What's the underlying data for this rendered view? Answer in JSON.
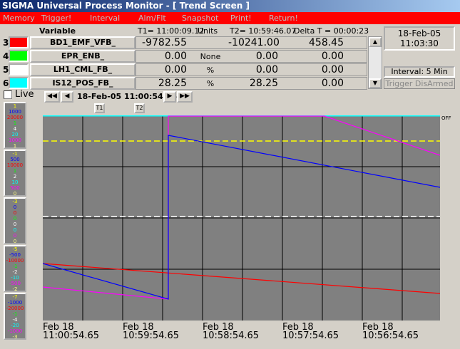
{
  "window": {
    "title": "SIGMA Universal Process Monitor - [ Trend Screen ]"
  },
  "menu": [
    "Memory",
    "Trigger!",
    "Interval",
    "Alm/Flt",
    "Snapshot",
    "Print!",
    "Return!"
  ],
  "table": {
    "header": {
      "variable": "Variable",
      "t1": "T1= 11:00:09.12",
      "units": "Units",
      "t2": "T2= 10:59:46.07",
      "delta": "Delta T = 00:00:23"
    },
    "rows": [
      {
        "index": "3",
        "color": "#ff0000",
        "name": "BD1_EMF_VFB_",
        "t1": "-9782.55",
        "units": "",
        "t2": "-10241.00",
        "delta": "458.45"
      },
      {
        "index": "4",
        "color": "#00ff00",
        "name": "EPR_ENB_",
        "t1": "0.00",
        "units": "None",
        "t2": "0.00",
        "delta": "0.00"
      },
      {
        "index": "5",
        "color": "#ffffff",
        "name": "LH1_CML_FB_",
        "t1": "0.00",
        "units": "%",
        "t2": "0.00",
        "delta": "0.00"
      },
      {
        "index": "6",
        "color": "#00ffff",
        "name": "IS12_POS_FB_",
        "t1": "28.25",
        "units": "%",
        "t2": "28.25",
        "delta": "0.00"
      }
    ]
  },
  "status": {
    "date": "18-Feb-05",
    "time": "11:03:30",
    "interval": "Interval: 5 Min",
    "trigger": "Trigger DisArmed"
  },
  "controls": {
    "live": "Live",
    "nav_time": "18-Feb-05 11:00:54.65",
    "t1_marker": "T1",
    "t2_marker": "T2",
    "off": "OFF"
  },
  "scale_colors": [
    "#ffff00",
    "#0000ff",
    "#ff0000",
    "#00ff00",
    "#ffffff",
    "#00ffff",
    "#ff00ff",
    "#ffff80"
  ],
  "scales": [
    [
      "1",
      "1000",
      "20000",
      "1",
      "4",
      "20",
      "1000",
      "1"
    ],
    [
      "-1",
      "500",
      "10000",
      "1",
      "2",
      "10",
      "500",
      "0"
    ],
    [
      "-3",
      "0",
      "0",
      "0",
      "0",
      "0",
      "0",
      "0"
    ],
    [
      "-5",
      "-500",
      "-10000",
      "-1",
      "-2",
      "-10",
      "-500",
      "-2"
    ],
    [
      "-7",
      "-1000",
      "-20000",
      "-1",
      "-4",
      "-20",
      "-1000",
      "-3"
    ]
  ],
  "x_axis": [
    {
      "date": "Feb 18",
      "time": "11:00:54.65"
    },
    {
      "date": "Feb 18",
      "time": "10:59:54.65"
    },
    {
      "date": "Feb 18",
      "time": "10:58:54.65"
    },
    {
      "date": "Feb 18",
      "time": "10:57:54.65"
    },
    {
      "date": "Feb 18",
      "time": "10:56:54.65"
    }
  ]
}
